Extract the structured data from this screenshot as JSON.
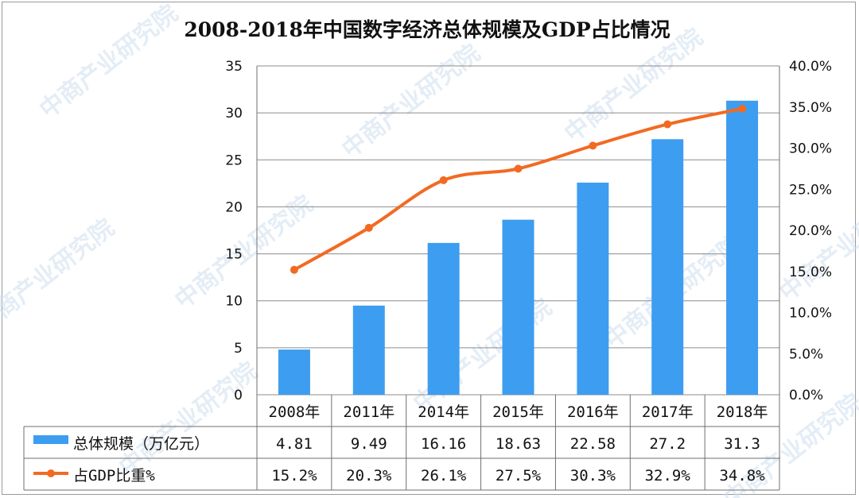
{
  "watermark": "中商产业研究院",
  "chart_data": {
    "type": "bar",
    "title": "2008-2018年中国数字经济总体规模及GDP占比情况",
    "categories": [
      "2008年",
      "2011年",
      "2014年",
      "2015年",
      "2016年",
      "2017年",
      "2018年"
    ],
    "ylim": [
      0,
      35
    ],
    "y_ticks": [
      "0",
      "5",
      "10",
      "15",
      "20",
      "25",
      "30",
      "35"
    ],
    "y2lim": [
      0,
      40
    ],
    "y2_ticks": [
      "0.0%",
      "5.0%",
      "10.0%",
      "15.0%",
      "20.0%",
      "25.0%",
      "30.0%",
      "35.0%",
      "40.0%"
    ],
    "grid": true,
    "legend_placement": "data-table",
    "series": [
      {
        "name": "总体规模（万亿元）",
        "type": "bar",
        "axis": "left",
        "color": "#3d9df0",
        "values": [
          4.81,
          9.49,
          16.16,
          18.63,
          22.58,
          27.2,
          31.3
        ],
        "labels": [
          "4.81",
          "9.49",
          "16.16",
          "18.63",
          "22.58",
          "27.2",
          "31.3"
        ]
      },
      {
        "name": "占GDP比重%",
        "type": "line",
        "axis": "right",
        "color": "#f26a22",
        "values": [
          15.2,
          20.3,
          26.1,
          27.5,
          30.3,
          32.9,
          34.8
        ],
        "labels": [
          "15.2%",
          "20.3%",
          "26.1%",
          "27.5%",
          "30.3%",
          "32.9%",
          "34.8%"
        ]
      }
    ]
  }
}
